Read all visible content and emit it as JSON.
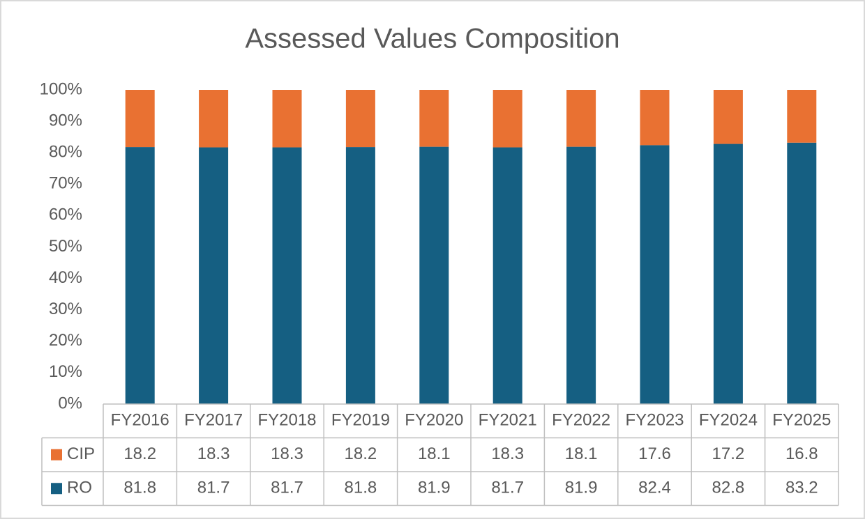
{
  "chart_data": {
    "type": "stacked_bar",
    "title": "Assessed Values Composition",
    "categories": [
      "FY2016",
      "FY2017",
      "FY2018",
      "FY2019",
      "FY2020",
      "FY2021",
      "FY2022",
      "FY2023",
      "FY2024",
      "FY2025"
    ],
    "series": [
      {
        "name": "CIP",
        "color": "#e97132",
        "values": [
          18.2,
          18.3,
          18.3,
          18.2,
          18.1,
          18.3,
          18.1,
          17.6,
          17.2,
          16.8
        ]
      },
      {
        "name": "RO",
        "color": "#155f82",
        "values": [
          81.8,
          81.7,
          81.7,
          81.8,
          81.9,
          81.7,
          81.9,
          82.4,
          82.8,
          83.2
        ]
      }
    ],
    "ylim": [
      0,
      100
    ],
    "yticks": [
      {
        "value": 0,
        "label": "0%"
      },
      {
        "value": 10,
        "label": "10%"
      },
      {
        "value": 20,
        "label": "20%"
      },
      {
        "value": 30,
        "label": "30%"
      },
      {
        "value": 40,
        "label": "40%"
      },
      {
        "value": 50,
        "label": "50%"
      },
      {
        "value": 60,
        "label": "60%"
      },
      {
        "value": 70,
        "label": "70%"
      },
      {
        "value": 80,
        "label": "80%"
      },
      {
        "value": 90,
        "label": "90%"
      },
      {
        "value": 100,
        "label": "100%"
      }
    ]
  }
}
